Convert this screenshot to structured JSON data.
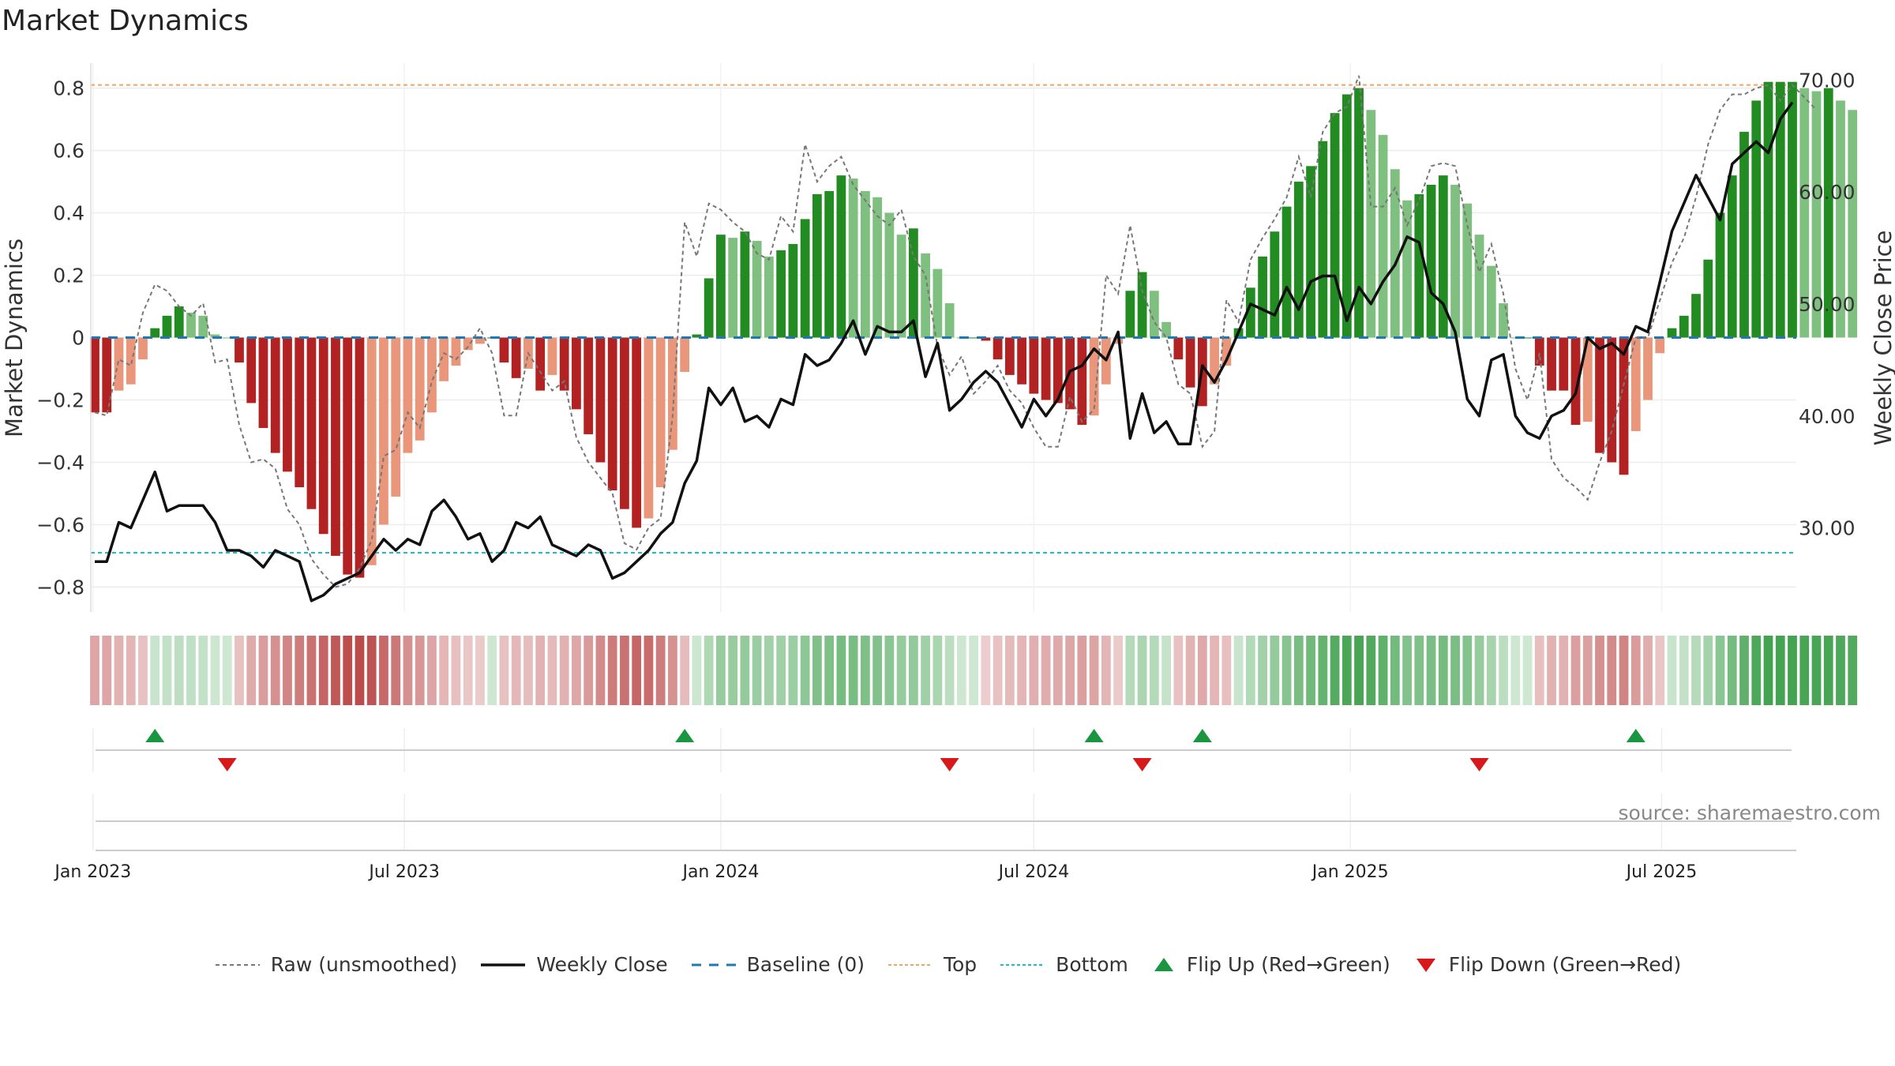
{
  "title": "Market Dynamics",
  "source": "source: sharemaestro.com",
  "colors": {
    "red_dark": "#b22222",
    "red_light": "#e9967a",
    "green_dark": "#228b22",
    "green_light": "#7fbf7f",
    "close_line": "#111111",
    "raw_line": "#777777",
    "baseline": "#1f77b4",
    "top": "#f4a460",
    "bottom": "#17becf"
  },
  "legend": [
    {
      "key": "raw",
      "label": "Raw (unsmoothed)"
    },
    {
      "key": "close",
      "label": "Weekly Close"
    },
    {
      "key": "baseline",
      "label": "Baseline (0)"
    },
    {
      "key": "top",
      "label": "Top"
    },
    {
      "key": "bottom",
      "label": "Bottom"
    },
    {
      "key": "flip_up",
      "label": "Flip Up (Red→Green)"
    },
    {
      "key": "flip_down",
      "label": "Flip Down (Green→Red)"
    }
  ],
  "chart_data": {
    "type": "bar",
    "title": "Market Dynamics",
    "ylabel": "Market Dynamics",
    "ylabel_right": "Weekly Close Price",
    "ylim": [
      -0.88,
      0.88
    ],
    "ylim_right": [
      22.5,
      71.5
    ],
    "yticks_left": [
      "0.8",
      "0.6",
      "0.4",
      "0.2",
      "0",
      "−0.2",
      "−0.4",
      "−0.6",
      "−0.8"
    ],
    "yticks_left_values": [
      0.8,
      0.6,
      0.4,
      0.2,
      0,
      -0.2,
      -0.4,
      -0.6,
      -0.8
    ],
    "yticks_right": [
      "70.00",
      "60.00",
      "50.00",
      "40.00",
      "30.00"
    ],
    "yticks_right_values": [
      70,
      60,
      50,
      40,
      30
    ],
    "x_start": "2023-01-02",
    "x_end": "2025-09-15",
    "xticks": [
      {
        "label": "Jan 2023",
        "date": "2023-01-01"
      },
      {
        "label": "Jul 2023",
        "date": "2023-07-01"
      },
      {
        "label": "Jan 2024",
        "date": "2024-01-01"
      },
      {
        "label": "Jul 2024",
        "date": "2024-07-01"
      },
      {
        "label": "Jan 2025",
        "date": "2025-01-01"
      },
      {
        "label": "Jul 2025",
        "date": "2025-07-01"
      }
    ],
    "top_level": 0.81,
    "bottom_level": -0.69,
    "baseline": 0,
    "dynamics": [
      -0.24,
      -0.24,
      -0.17,
      -0.15,
      -0.07,
      0.03,
      0.07,
      0.1,
      0.08,
      0.07,
      0.01,
      0,
      -0.08,
      -0.21,
      -0.29,
      -0.37,
      -0.43,
      -0.48,
      -0.55,
      -0.63,
      -0.7,
      -0.76,
      -0.77,
      -0.73,
      -0.6,
      -0.51,
      -0.37,
      -0.33,
      -0.24,
      -0.14,
      -0.09,
      -0.04,
      -0.02,
      0,
      -0.08,
      -0.13,
      -0.1,
      -0.17,
      -0.12,
      -0.17,
      -0.23,
      -0.31,
      -0.4,
      -0.49,
      -0.55,
      -0.61,
      -0.58,
      -0.48,
      -0.36,
      -0.11,
      0.01,
      0.19,
      0.33,
      0.32,
      0.34,
      0.31,
      0.26,
      0.28,
      0.3,
      0.38,
      0.46,
      0.47,
      0.52,
      0.51,
      0.47,
      0.45,
      0.4,
      0.33,
      0.35,
      0.27,
      0.22,
      0.11,
      0,
      0,
      -0.01,
      -0.07,
      -0.12,
      -0.15,
      -0.18,
      -0.2,
      -0.21,
      -0.23,
      -0.28,
      -0.25,
      -0.15,
      -0.02,
      0.15,
      0.21,
      0.15,
      0.05,
      -0.07,
      -0.16,
      -0.22,
      -0.15,
      -0.09,
      0.03,
      0.16,
      0.26,
      0.34,
      0.42,
      0.5,
      0.55,
      0.63,
      0.72,
      0.78,
      0.8,
      0.73,
      0.65,
      0.54,
      0.44,
      0.46,
      0.49,
      0.52,
      0.49,
      0.43,
      0.33,
      0.23,
      0.11,
      0,
      0,
      -0.09,
      -0.17,
      -0.17,
      -0.28,
      -0.27,
      -0.37,
      -0.4,
      -0.44,
      -0.3,
      -0.2,
      -0.05,
      0.03,
      0.07,
      0.14,
      0.25,
      0.4,
      0.52,
      0.66,
      0.76,
      0.82,
      0.82,
      0.82,
      0.8,
      0.79,
      0.8,
      0.76,
      0.73
    ],
    "raw": [
      -0.24,
      -0.25,
      -0.07,
      -0.09,
      0.08,
      0.17,
      0.15,
      0.1,
      0.07,
      0.11,
      -0.08,
      -0.07,
      -0.28,
      -0.4,
      -0.39,
      -0.42,
      -0.55,
      -0.6,
      -0.71,
      -0.76,
      -0.8,
      -0.79,
      -0.74,
      -0.65,
      -0.38,
      -0.36,
      -0.24,
      -0.29,
      -0.14,
      -0.05,
      -0.07,
      -0.03,
      0.03,
      -0.05,
      -0.25,
      -0.25,
      -0.05,
      -0.11,
      -0.17,
      -0.14,
      -0.32,
      -0.4,
      -0.45,
      -0.5,
      -0.66,
      -0.68,
      -0.61,
      -0.58,
      -0.25,
      0.37,
      0.26,
      0.43,
      0.41,
      0.37,
      0.34,
      0.27,
      0.25,
      0.39,
      0.34,
      0.62,
      0.5,
      0.55,
      0.58,
      0.49,
      0.44,
      0.39,
      0.36,
      0.41,
      0.26,
      0.2,
      -0.03,
      -0.12,
      -0.06,
      -0.18,
      -0.14,
      -0.09,
      -0.17,
      -0.21,
      -0.29,
      -0.35,
      -0.35,
      -0.19,
      -0.27,
      -0.23,
      0.2,
      0.14,
      0.36,
      0.15,
      0.05,
      0.0,
      -0.15,
      -0.18,
      -0.35,
      -0.3,
      0.12,
      0.05,
      0.25,
      0.32,
      0.38,
      0.45,
      0.58,
      0.45,
      0.66,
      0.72,
      0.74,
      0.84,
      0.42,
      0.42,
      0.48,
      0.36,
      0.44,
      0.55,
      0.56,
      0.55,
      0.36,
      0.21,
      0.3,
      0.14,
      -0.1,
      -0.2,
      -0.05,
      -0.39,
      -0.45,
      -0.48,
      -0.52,
      -0.4,
      -0.3,
      -0.15,
      0.0,
      0.0,
      0.12,
      0.24,
      0.32,
      0.45,
      0.62,
      0.73,
      0.78,
      0.78,
      0.8,
      0.81,
      0.76,
      0.81,
      0.77,
      0.73
    ],
    "weekly_close": [
      27.0,
      27.0,
      30.5,
      30.0,
      32.5,
      35.0,
      31.5,
      32.0,
      32.0,
      32.0,
      30.5,
      28.0,
      28.0,
      27.5,
      26.5,
      28.0,
      27.5,
      27.0,
      23.5,
      24.0,
      25.0,
      25.5,
      26.0,
      27.5,
      29.0,
      28.0,
      29.0,
      28.5,
      31.5,
      32.5,
      31.0,
      29.0,
      29.5,
      27.0,
      28.0,
      30.5,
      30.0,
      31.0,
      28.5,
      28.0,
      27.5,
      28.5,
      28.0,
      25.5,
      26.0,
      27.0,
      28.0,
      29.5,
      30.5,
      34.0,
      36.0,
      42.5,
      41.0,
      42.5,
      39.5,
      40.0,
      39.0,
      41.5,
      41.0,
      45.5,
      44.5,
      45.0,
      46.5,
      48.5,
      45.5,
      48.0,
      47.5,
      47.5,
      48.5,
      43.5,
      46.5,
      40.5,
      41.5,
      43.0,
      44.0,
      43.0,
      41.0,
      39.0,
      41.5,
      40.0,
      41.5,
      44.0,
      44.5,
      46.0,
      45.0,
      47.5,
      38.0,
      42.0,
      38.5,
      39.5,
      37.5,
      37.5,
      44.5,
      43.0,
      45.0,
      47.5,
      50.0,
      49.5,
      49.0,
      51.5,
      49.5,
      52.0,
      52.5,
      52.5,
      48.5,
      51.5,
      50.0,
      52.0,
      53.5,
      56.0,
      55.5,
      51.0,
      50.0,
      47.5,
      41.5,
      40.0,
      45.0,
      45.5,
      40.0,
      38.5,
      38.0,
      40.0,
      40.5,
      42.0,
      47.0,
      46.0,
      46.5,
      45.5,
      48.0,
      47.5,
      52.0,
      56.5,
      59.0,
      61.5,
      59.5,
      57.5,
      62.5,
      63.5,
      64.5,
      63.5,
      66.5,
      68.0
    ],
    "flip_up_weeks": [
      5,
      49,
      83,
      92,
      128
    ],
    "flip_down_weeks": [
      11,
      71,
      87,
      115
    ]
  }
}
